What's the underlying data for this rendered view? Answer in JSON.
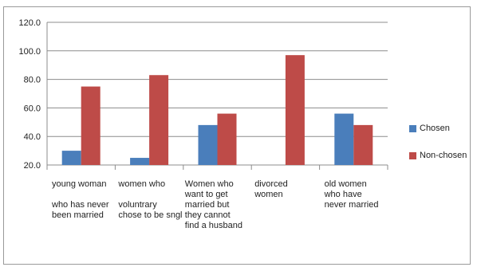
{
  "chart_data": {
    "type": "bar",
    "categories": [
      "young woman\n\nwho has never\n  been married",
      "women who\n\nvoluntrary\nchose to be sngl",
      "Women        who\nwant    to    get\nmarried     but\nthey     cannot\nfind a husband",
      "divorced\nwomen",
      "old women\n  who have\nnever married"
    ],
    "series": [
      {
        "name": "Chosen",
        "color": "#4a7ebb",
        "values": [
          30,
          25,
          48,
          null,
          56
        ]
      },
      {
        "name": "Non-chosen",
        "color": "#be4b48",
        "values": [
          75,
          83,
          56,
          97,
          48
        ]
      }
    ],
    "yticks": [
      "20.0",
      "40.0",
      "60.0",
      "80.0",
      "100.0",
      "120.0"
    ],
    "ylim": [
      20,
      120
    ],
    "grid": true,
    "legend_position": "right"
  }
}
